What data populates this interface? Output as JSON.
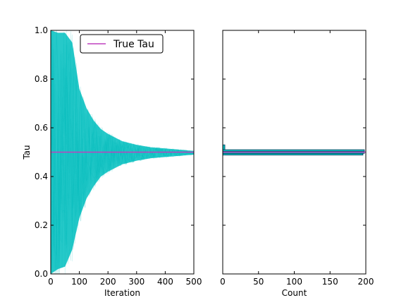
{
  "chart_data": [
    {
      "type": "line",
      "title": "",
      "xlabel": "Iteration",
      "ylabel": "Tau",
      "xlim": [
        0,
        500
      ],
      "ylim": [
        0.0,
        1.0
      ],
      "xticks": [
        "0",
        "100",
        "200",
        "300",
        "400",
        "500"
      ],
      "yticks": [
        "0.0",
        "0.2",
        "0.4",
        "0.6",
        "0.8",
        "1.0"
      ],
      "grid": false,
      "legend": {
        "location": "top-right",
        "entries": [
          {
            "label": "True Tau",
            "color": "#bf40bf"
          }
        ]
      },
      "series": [
        {
          "name": "",
          "color": "#00bfbf",
          "description_bands": true,
          "envelope": {
            "x": [
              0,
              25,
              50,
              75,
              100,
              125,
              150,
              175,
              200,
              250,
              300,
              350,
              400,
              450,
              500
            ],
            "lower": [
              0.0,
              0.02,
              0.03,
              0.1,
              0.23,
              0.31,
              0.36,
              0.4,
              0.42,
              0.45,
              0.465,
              0.475,
              0.48,
              0.485,
              0.49
            ],
            "upper": [
              1.0,
              0.99,
              0.99,
              0.95,
              0.76,
              0.68,
              0.63,
              0.595,
              0.575,
              0.545,
              0.53,
              0.52,
              0.515,
              0.51,
              0.505
            ]
          }
        },
        {
          "name": "True Tau",
          "color": "#bf40bf",
          "x": [
            0,
            500
          ],
          "y": [
            0.5,
            0.5
          ]
        }
      ]
    },
    {
      "type": "bar",
      "orientation": "horizontal",
      "title": "",
      "xlabel": "Count",
      "ylabel": "",
      "xlim": [
        0,
        200
      ],
      "ylim": [
        0.0,
        1.0
      ],
      "xticks": [
        "0",
        "50",
        "100",
        "150",
        "200"
      ],
      "grid": false,
      "series": [
        {
          "name": "",
          "color": "#00bfbf",
          "bins": [
            {
              "y0": 0.488,
              "y1": 0.495,
              "count": 196
            },
            {
              "y0": 0.495,
              "y1": 0.503,
              "count": 198
            },
            {
              "y0": 0.503,
              "y1": 0.51,
              "count": 198
            },
            {
              "y0": 0.51,
              "y1": 0.53,
              "count": 3
            }
          ]
        },
        {
          "name": "",
          "color": "#bf40bf",
          "x": [
            0,
            200
          ],
          "y": [
            0.5,
            0.5
          ]
        }
      ]
    }
  ]
}
